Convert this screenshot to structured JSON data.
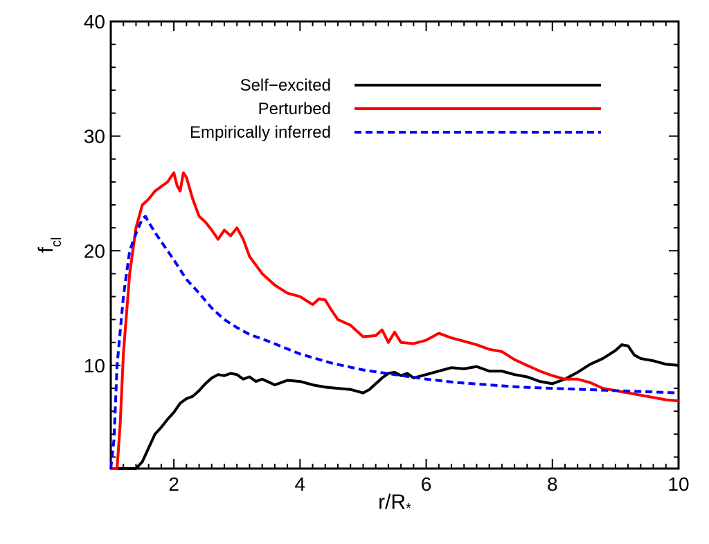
{
  "chart_data": {
    "type": "line",
    "xlabel": "r/R",
    "xlabel_sub": "*",
    "ylabel": "f",
    "ylabel_sub": "cl",
    "xlim": [
      1,
      10
    ],
    "ylim": [
      1,
      40
    ],
    "xticks": [
      2,
      4,
      6,
      8,
      10
    ],
    "xtick_labels": [
      "2",
      "4",
      "6",
      "8",
      "10"
    ],
    "yticks": [
      10,
      20,
      30,
      40
    ],
    "ytick_labels": [
      "10",
      "20",
      "30",
      "40"
    ],
    "legend_position": "top-right",
    "grid": false,
    "series": [
      {
        "name": "Self−excited",
        "color": "#000000",
        "dash": "solid",
        "x": [
          1.0,
          1.4,
          1.5,
          1.6,
          1.7,
          1.8,
          1.9,
          2.0,
          2.1,
          2.2,
          2.3,
          2.4,
          2.5,
          2.6,
          2.7,
          2.8,
          2.9,
          3.0,
          3.1,
          3.2,
          3.3,
          3.4,
          3.6,
          3.8,
          4.0,
          4.2,
          4.4,
          4.6,
          4.8,
          5.0,
          5.1,
          5.2,
          5.3,
          5.4,
          5.5,
          5.6,
          5.7,
          5.8,
          6.0,
          6.2,
          6.4,
          6.6,
          6.8,
          7.0,
          7.2,
          7.4,
          7.6,
          7.8,
          8.0,
          8.2,
          8.4,
          8.6,
          8.8,
          9.0,
          9.1,
          9.2,
          9.3,
          9.4,
          9.6,
          9.8,
          10.0
        ],
        "y": [
          1.0,
          1.0,
          1.6,
          2.8,
          4.0,
          4.6,
          5.3,
          5.9,
          6.7,
          7.1,
          7.3,
          7.8,
          8.4,
          8.9,
          9.2,
          9.1,
          9.3,
          9.2,
          8.8,
          9.0,
          8.6,
          8.8,
          8.3,
          8.7,
          8.6,
          8.3,
          8.1,
          8.0,
          7.9,
          7.6,
          7.9,
          8.4,
          8.9,
          9.3,
          9.4,
          9.1,
          9.3,
          8.9,
          9.2,
          9.5,
          9.8,
          9.7,
          9.9,
          9.5,
          9.5,
          9.2,
          9.0,
          8.6,
          8.4,
          8.8,
          9.4,
          10.1,
          10.6,
          11.3,
          11.8,
          11.7,
          10.9,
          10.6,
          10.4,
          10.1,
          10.0
        ]
      },
      {
        "name": "Perturbed",
        "color": "#ff0000",
        "dash": "solid",
        "x": [
          1.0,
          1.1,
          1.15,
          1.2,
          1.3,
          1.4,
          1.5,
          1.6,
          1.7,
          1.8,
          1.9,
          2.0,
          2.05,
          2.1,
          2.15,
          2.2,
          2.3,
          2.4,
          2.5,
          2.6,
          2.7,
          2.8,
          2.9,
          3.0,
          3.1,
          3.2,
          3.4,
          3.6,
          3.8,
          4.0,
          4.2,
          4.3,
          4.4,
          4.5,
          4.6,
          4.8,
          5.0,
          5.2,
          5.3,
          5.4,
          5.5,
          5.6,
          5.8,
          6.0,
          6.2,
          6.4,
          6.6,
          6.8,
          7.0,
          7.2,
          7.4,
          7.6,
          7.8,
          8.0,
          8.2,
          8.4,
          8.6,
          8.8,
          9.0,
          9.2,
          9.4,
          9.6,
          9.8,
          10.0
        ],
        "y": [
          1.0,
          1.0,
          5.0,
          11.0,
          18.0,
          22.0,
          24.0,
          24.5,
          25.2,
          25.6,
          26.0,
          26.8,
          25.7,
          25.2,
          26.8,
          26.4,
          24.5,
          23.0,
          22.5,
          21.8,
          21.0,
          21.8,
          21.3,
          22.0,
          21.0,
          19.5,
          18.0,
          17.0,
          16.3,
          16.0,
          15.3,
          15.8,
          15.7,
          14.8,
          14.0,
          13.5,
          12.5,
          12.6,
          13.1,
          12.0,
          12.9,
          12.0,
          11.9,
          12.2,
          12.8,
          12.4,
          12.1,
          11.8,
          11.4,
          11.2,
          10.5,
          10.0,
          9.5,
          9.1,
          8.8,
          8.8,
          8.5,
          8.0,
          7.8,
          7.6,
          7.4,
          7.2,
          7.0,
          6.9
        ]
      },
      {
        "name": "Empirically inferred",
        "color": "#0000ff",
        "dash": "dashed",
        "x": [
          1.0,
          1.05,
          1.1,
          1.2,
          1.3,
          1.4,
          1.5,
          1.55,
          1.6,
          1.7,
          1.8,
          1.9,
          2.0,
          2.2,
          2.4,
          2.6,
          2.8,
          3.0,
          3.2,
          3.5,
          4.0,
          4.5,
          5.0,
          5.5,
          6.0,
          6.5,
          7.0,
          7.5,
          8.0,
          8.5,
          9.0,
          9.5,
          10.0
        ],
        "y": [
          1.0,
          3.5,
          10.0,
          16.0,
          20.0,
          21.5,
          22.8,
          23.0,
          22.5,
          21.6,
          20.8,
          20.0,
          19.2,
          17.5,
          16.3,
          15.0,
          14.0,
          13.3,
          12.7,
          12.1,
          11.0,
          10.2,
          9.6,
          9.2,
          8.8,
          8.5,
          8.3,
          8.1,
          8.0,
          7.9,
          7.8,
          7.7,
          7.6
        ]
      }
    ]
  }
}
